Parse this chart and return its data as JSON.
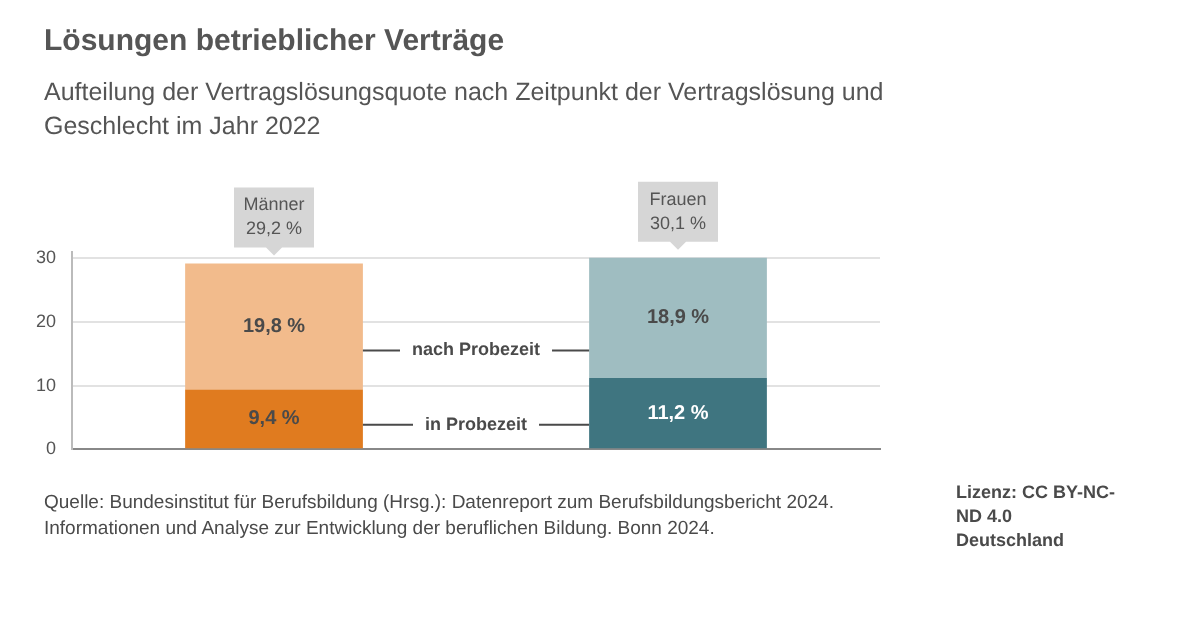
{
  "chart_data": {
    "type": "bar",
    "title": "Lösungen betrieblicher Verträge",
    "subtitle": "Aufteilung der Vertragslösungsquote nach Zeitpunkt der Vertragslösung und Geschlecht im Jahr 2022",
    "categories": [
      "Männer",
      "Frauen"
    ],
    "stacked": true,
    "series": [
      {
        "name": "in Probezeit",
        "colors": [
          "#e07b1f",
          "#3f7580"
        ],
        "values": [
          9.4,
          11.2
        ],
        "value_labels": [
          "9,4 %",
          "11,2 %"
        ]
      },
      {
        "name": "nach Probezeit",
        "colors": [
          "#f2bb8c",
          "#9fbdc1"
        ],
        "values": [
          19.8,
          18.9
        ],
        "value_labels": [
          "19,8 %",
          "18,9 %"
        ]
      }
    ],
    "totals": [
      "29,2 %",
      "30,1 %"
    ],
    "ylim": [
      0,
      31
    ],
    "yticks": [
      0,
      10,
      20,
      30
    ],
    "grid": "y",
    "tick_labels": "y",
    "annotations": [
      "Quelle: Bundesinstitut für Berufsbildung (Hrsg.): Datenreport zum Berufsbildungsbericht 2024. Informationen und Analyse zur Entwicklung der beruflichen Bildung. Bonn 2024.",
      "Lizenz: CC BY-NC-ND 4.0 Deutschland"
    ]
  }
}
